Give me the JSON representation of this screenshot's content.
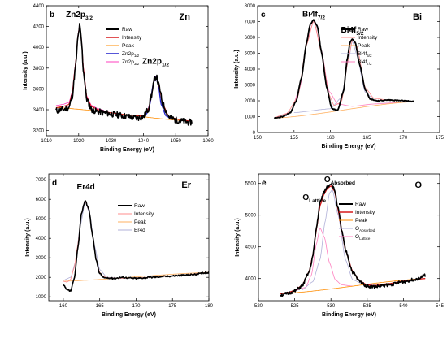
{
  "chart_data": [
    {
      "type": "line",
      "panel_label": "b",
      "element": "Zn",
      "xlabel": "Binding Energy (eV)",
      "ylabel": "Intensity (a.u.)",
      "xlim": [
        1010,
        1060
      ],
      "ylim": [
        3150,
        4400
      ],
      "xticks": [
        1010,
        1020,
        1030,
        1040,
        1050,
        1060
      ],
      "yticks": [
        3200,
        3400,
        3600,
        3800,
        4000,
        4200,
        4400
      ],
      "peak_labels": [
        {
          "main": "Zn2p",
          "sub": "3/2",
          "x": 1020.2,
          "y": 4290
        },
        {
          "main": "Zn2p",
          "sub": "1/2",
          "x": 1043.8,
          "y": 3840
        }
      ],
      "legend": [
        {
          "main": "Raw",
          "sub": "",
          "color": "#000000",
          "width": 2
        },
        {
          "main": "Intensity",
          "sub": "",
          "color": "#d7191c",
          "width": 1.5
        },
        {
          "main": "Peak",
          "sub": "",
          "color": "#ff8c00",
          "width": 1
        },
        {
          "main": "Zn2p",
          "sub": "1/2",
          "color": "#1f1fcc",
          "width": 1.5
        },
        {
          "main": "Zn2p",
          "sub": "3/2",
          "color": "#ff3fbf",
          "width": 1
        }
      ],
      "series": [
        {
          "name": "Raw",
          "color": "#000000",
          "width": 1.6,
          "noise": 30,
          "seed": 11,
          "x": [
            1013,
            1015,
            1017,
            1018,
            1019,
            1019.8,
            1020.3,
            1020.8,
            1021.5,
            1022.5,
            1024,
            1026,
            1028,
            1030,
            1032,
            1034,
            1036,
            1038,
            1040,
            1041.5,
            1042.5,
            1043.5,
            1044,
            1044.8,
            1046,
            1048,
            1050,
            1052,
            1054,
            1055
          ],
          "y": [
            3390,
            3400,
            3420,
            3530,
            3800,
            4100,
            4210,
            4080,
            3760,
            3500,
            3400,
            3380,
            3370,
            3360,
            3350,
            3340,
            3330,
            3320,
            3330,
            3400,
            3540,
            3700,
            3720,
            3630,
            3450,
            3330,
            3300,
            3290,
            3280,
            3280
          ]
        },
        {
          "name": "Intensity",
          "color": "#d7191c",
          "width": 1.1,
          "x": [
            1013,
            1015,
            1017,
            1018,
            1019,
            1019.8,
            1020.3,
            1020.8,
            1021.5,
            1022.5,
            1024,
            1026,
            1030,
            1035,
            1040,
            1041.5,
            1042.5,
            1043.5,
            1044,
            1044.8,
            1046,
            1048,
            1052,
            1055
          ],
          "y": [
            3420,
            3430,
            3450,
            3560,
            3830,
            4120,
            4210,
            4090,
            3780,
            3520,
            3430,
            3400,
            3370,
            3350,
            3340,
            3400,
            3540,
            3700,
            3720,
            3630,
            3450,
            3330,
            3300,
            3290
          ]
        },
        {
          "name": "Peak",
          "color": "#ff8c00",
          "width": 0.8,
          "x": [
            1013,
            1055
          ],
          "y": [
            3420,
            3290
          ]
        },
        {
          "name": "Zn2p1/2",
          "color": "#1f1fcc",
          "width": 1.2,
          "x": [
            1039,
            1041,
            1042,
            1043,
            1043.8,
            1044.6,
            1045.5,
            1047,
            1049
          ],
          "y": [
            3330,
            3360,
            3450,
            3640,
            3720,
            3640,
            3450,
            3340,
            3305
          ]
        },
        {
          "name": "Zn2p3/2",
          "color": "#ff3fbf",
          "width": 0.8,
          "x": [
            1013,
            1015,
            1017,
            1018,
            1019,
            1019.8,
            1020.3,
            1020.8,
            1021.5,
            1022.5,
            1024,
            1026,
            1030,
            1036
          ],
          "y": [
            3440,
            3450,
            3470,
            3570,
            3840,
            4130,
            4220,
            4100,
            3790,
            3530,
            3440,
            3410,
            3370,
            3345
          ]
        }
      ]
    },
    {
      "type": "line",
      "panel_label": "c",
      "element": "Bi",
      "xlabel": "Binding Energy (eV)",
      "ylabel": "Intensity (a.u.)",
      "xlim": [
        150,
        175
      ],
      "ylim": [
        0,
        8000
      ],
      "xticks": [
        150,
        155,
        160,
        165,
        170,
        175
      ],
      "yticks": [
        0,
        1000,
        2000,
        3000,
        4000,
        5000,
        6000,
        7000,
        8000
      ],
      "peak_labels": [
        {
          "main": "Bi4f",
          "sub": "7/2",
          "x": 157.7,
          "y": 7300
        },
        {
          "main": "Bi4f",
          "sub": "5/2",
          "x": 163.0,
          "y": 6300
        }
      ],
      "legend": [
        {
          "main": "Raw",
          "sub": "",
          "color": "#000000",
          "width": 2
        },
        {
          "main": "Intensity",
          "sub": "",
          "color": "#ff8c8c",
          "width": 1
        },
        {
          "main": "Peak",
          "sub": "",
          "color": "#ffb060",
          "width": 1
        },
        {
          "main": "Bi4f",
          "sub": "5/2",
          "color": "#b0b0d8",
          "width": 1
        },
        {
          "main": "Bi4f",
          "sub": "7/2",
          "color": "#ff80c0",
          "width": 1
        }
      ],
      "series": [
        {
          "name": "Raw",
          "color": "#000000",
          "width": 1.8,
          "noise": 30,
          "seed": 23,
          "x": [
            152.3,
            153.5,
            154.5,
            155.3,
            156.0,
            156.7,
            157.2,
            157.7,
            158.2,
            158.8,
            159.5,
            160.2,
            161.0,
            161.8,
            162.3,
            162.7,
            163.0,
            163.4,
            164.0,
            164.8,
            165.5,
            166.5,
            168,
            170,
            171.5
          ],
          "y": [
            900,
            1000,
            1250,
            2000,
            3400,
            5600,
            6800,
            7100,
            6700,
            5000,
            2800,
            1500,
            1400,
            2600,
            4600,
            5700,
            5900,
            5700,
            4300,
            2700,
            2100,
            2000,
            2050,
            2000,
            1950
          ]
        },
        {
          "name": "Intensity",
          "color": "#ff8c8c",
          "width": 0.8,
          "x": [
            152.3,
            154,
            155.5,
            156.7,
            157.7,
            158.8,
            159.8,
            160.5,
            161.5,
            162.5,
            163.0,
            163.6,
            164.8,
            166,
            168,
            171.5
          ],
          "y": [
            950,
            1200,
            2200,
            5500,
            7050,
            5000,
            2400,
            1700,
            1900,
            4700,
            5850,
            5500,
            2800,
            2150,
            2050,
            1950
          ]
        },
        {
          "name": "Peak",
          "color": "#ffb060",
          "width": 0.8,
          "x": [
            152.3,
            171.5
          ],
          "y": [
            900,
            1950
          ]
        },
        {
          "name": "Bi4f5/2",
          "color": "#b0b0d8",
          "width": 0.8,
          "x": [
            155,
            160,
            161.5,
            162.5,
            163.0,
            163.6,
            164.8,
            166.5,
            171.5
          ],
          "y": [
            1250,
            1500,
            2200,
            4600,
            5800,
            4900,
            2500,
            1900,
            1950
          ]
        },
        {
          "name": "Bi4f7/2",
          "color": "#ff80c0",
          "width": 0.8,
          "x": [
            152.3,
            154.5,
            155.8,
            156.8,
            157.7,
            158.7,
            159.8,
            161,
            163,
            166,
            171.5
          ],
          "y": [
            950,
            1250,
            2800,
            5800,
            7050,
            5300,
            2600,
            1800,
            1650,
            1800,
            1950
          ]
        }
      ]
    },
    {
      "type": "line",
      "panel_label": "d",
      "element": "Er",
      "xlabel": "Binding Energy (eV)",
      "ylabel": "Intensity (a.u.)",
      "xlim": [
        158,
        180
      ],
      "ylim": [
        800,
        7300
      ],
      "xticks": [
        160,
        165,
        170,
        175,
        180
      ],
      "yticks": [
        1000,
        2000,
        3000,
        4000,
        5000,
        6000,
        7000
      ],
      "peak_labels": [
        {
          "main": "Er4d",
          "sub": "",
          "x": 163.1,
          "y": 6500
        }
      ],
      "legend": [
        {
          "main": "Raw",
          "sub": "",
          "color": "#000000",
          "width": 2
        },
        {
          "main": "Intensity",
          "sub": "",
          "color": "#ff8c8c",
          "width": 1
        },
        {
          "main": "Peak",
          "sub": "",
          "color": "#ffb060",
          "width": 1
        },
        {
          "main": "Er4d",
          "sub": "",
          "color": "#b0b0d8",
          "width": 1
        }
      ],
      "series": [
        {
          "name": "Raw",
          "color": "#000000",
          "width": 1.6,
          "noise": 40,
          "seed": 37,
          "x": [
            160,
            160.5,
            161,
            161.5,
            162,
            162.5,
            163,
            163.5,
            164,
            164.5,
            165,
            165.5,
            166,
            167,
            168,
            170,
            172,
            174,
            176,
            178,
            180
          ],
          "y": [
            1600,
            1350,
            1300,
            1900,
            3500,
            5300,
            5950,
            5500,
            4200,
            2900,
            2200,
            2000,
            1950,
            1950,
            2000,
            1950,
            2000,
            2050,
            2100,
            2150,
            2250
          ]
        },
        {
          "name": "Intensity",
          "color": "#ff8c8c",
          "width": 0.8,
          "x": [
            160,
            160.5,
            161,
            161.5,
            162,
            162.5,
            163,
            163.5,
            164,
            164.5,
            165,
            165.5,
            166,
            168,
            172,
            176,
            180
          ],
          "y": [
            1800,
            1750,
            1900,
            2500,
            3700,
            5300,
            5900,
            5450,
            4200,
            2950,
            2250,
            2050,
            1980,
            1950,
            2000,
            2100,
            2250
          ]
        },
        {
          "name": "Peak",
          "color": "#ffb060",
          "width": 0.8,
          "x": [
            160,
            180
          ],
          "y": [
            1800,
            2250
          ]
        },
        {
          "name": "Er4d",
          "color": "#b0b0d8",
          "width": 0.8,
          "x": [
            160,
            161,
            161.7,
            162.3,
            163,
            163.6,
            164.3,
            165,
            166,
            168
          ],
          "y": [
            1850,
            2000,
            2800,
            4600,
            5850,
            5300,
            3600,
            2400,
            2000,
            1950
          ]
        }
      ]
    },
    {
      "type": "line",
      "panel_label": "e",
      "element": "O",
      "xlabel": "Binding Energy (eV)",
      "ylabel": "Intensity (a.u.)",
      "xlim": [
        520,
        545
      ],
      "ylim": [
        3650,
        5650
      ],
      "xticks": [
        520,
        525,
        530,
        535,
        540,
        545
      ],
      "yticks": [
        4000,
        4500,
        5000,
        5500
      ],
      "peak_labels": [
        {
          "main": "O",
          "sub": "Lattice",
          "x": 527.7,
          "y": 5240
        },
        {
          "main": "O",
          "sub": "Absorbed",
          "x": 531.2,
          "y": 5520
        }
      ],
      "legend": [
        {
          "main": "Raw",
          "sub": "",
          "color": "#000000",
          "width": 2
        },
        {
          "main": "Intensity",
          "sub": "",
          "color": "#d7191c",
          "width": 1.5
        },
        {
          "main": "Peak",
          "sub": "",
          "color": "#ff8c00",
          "width": 1
        },
        {
          "main": "O",
          "sub": "Absorbed",
          "color": "#b0b0d8",
          "width": 1
        },
        {
          "main": "O",
          "sub": "Lattice",
          "color": "#ff80c0",
          "width": 1
        }
      ],
      "series": [
        {
          "name": "Raw",
          "color": "#000000",
          "width": 1.6,
          "noise": 25,
          "seed": 51,
          "x": [
            523,
            524,
            525,
            526,
            527,
            527.5,
            528,
            528.5,
            529,
            529.5,
            530,
            530.5,
            531,
            531.5,
            532,
            533,
            534,
            535,
            536,
            538,
            540,
            542,
            543
          ],
          "y": [
            3740,
            3760,
            3800,
            3880,
            4100,
            4350,
            4800,
            5200,
            5350,
            5450,
            5500,
            5400,
            5100,
            4750,
            4450,
            4100,
            3950,
            3880,
            3870,
            3900,
            3950,
            4000,
            4050
          ]
        },
        {
          "name": "Intensity",
          "color": "#d7191c",
          "width": 1.3,
          "x": [
            523,
            524,
            525,
            526,
            527,
            527.5,
            528,
            528.5,
            529,
            529.5,
            530,
            530.5,
            531,
            531.5,
            532,
            533,
            534,
            535,
            536,
            538,
            540,
            543
          ],
          "y": [
            3760,
            3780,
            3810,
            3890,
            4110,
            4360,
            4780,
            5150,
            5320,
            5420,
            5460,
            5380,
            5080,
            4750,
            4450,
            4110,
            3960,
            3900,
            3890,
            3920,
            3960,
            4000
          ]
        },
        {
          "name": "Peak",
          "color": "#ff8c00",
          "width": 0.8,
          "x": [
            523,
            543
          ],
          "y": [
            3760,
            4000
          ]
        },
        {
          "name": "OAbsorbed",
          "color": "#b0b0d8",
          "width": 0.8,
          "x": [
            526,
            527.5,
            528.5,
            529.2,
            529.8,
            530.2,
            531,
            532,
            533,
            535
          ],
          "y": [
            3820,
            3950,
            4300,
            4900,
            5350,
            5400,
            5000,
            4300,
            3980,
            3880
          ]
        },
        {
          "name": "OLattice",
          "color": "#ff80c0",
          "width": 0.8,
          "x": [
            525,
            526.5,
            527.3,
            528,
            528.5,
            529.1,
            529.8,
            530.6,
            531.5,
            533
          ],
          "y": [
            3810,
            3860,
            4050,
            4550,
            4800,
            4650,
            4250,
            3980,
            3900,
            3880
          ]
        }
      ]
    }
  ]
}
